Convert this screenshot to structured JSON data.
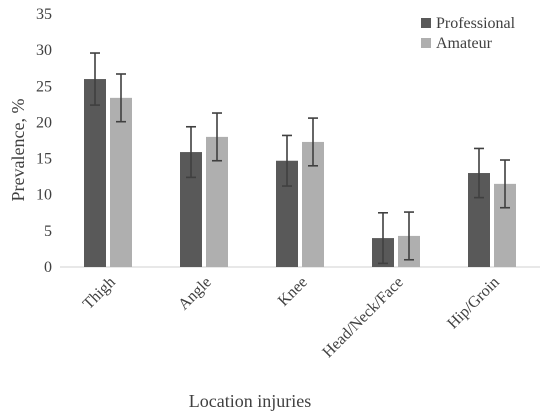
{
  "chart_data": {
    "type": "bar",
    "xlabel": "Location injuries",
    "ylabel": "Prevalence, %",
    "ylim": [
      0,
      35
    ],
    "yticks": [
      0,
      5,
      10,
      15,
      20,
      25,
      30,
      35
    ],
    "grid": false,
    "legend": "top-right",
    "categories": [
      "Thigh",
      "Angle",
      "Knee",
      "Head/Neck/Face",
      "Hip/Groin"
    ],
    "series": [
      {
        "name": "Professional",
        "color": "#595959",
        "values": [
          26.0,
          15.9,
          14.7,
          4.0,
          13.0
        ],
        "error": [
          3.6,
          3.5,
          3.5,
          3.5,
          3.4
        ]
      },
      {
        "name": "Amateur",
        "color": "#afafaf",
        "values": [
          23.4,
          18.0,
          17.3,
          4.3,
          11.5
        ],
        "error": [
          3.3,
          3.3,
          3.3,
          3.3,
          3.3
        ]
      }
    ]
  }
}
